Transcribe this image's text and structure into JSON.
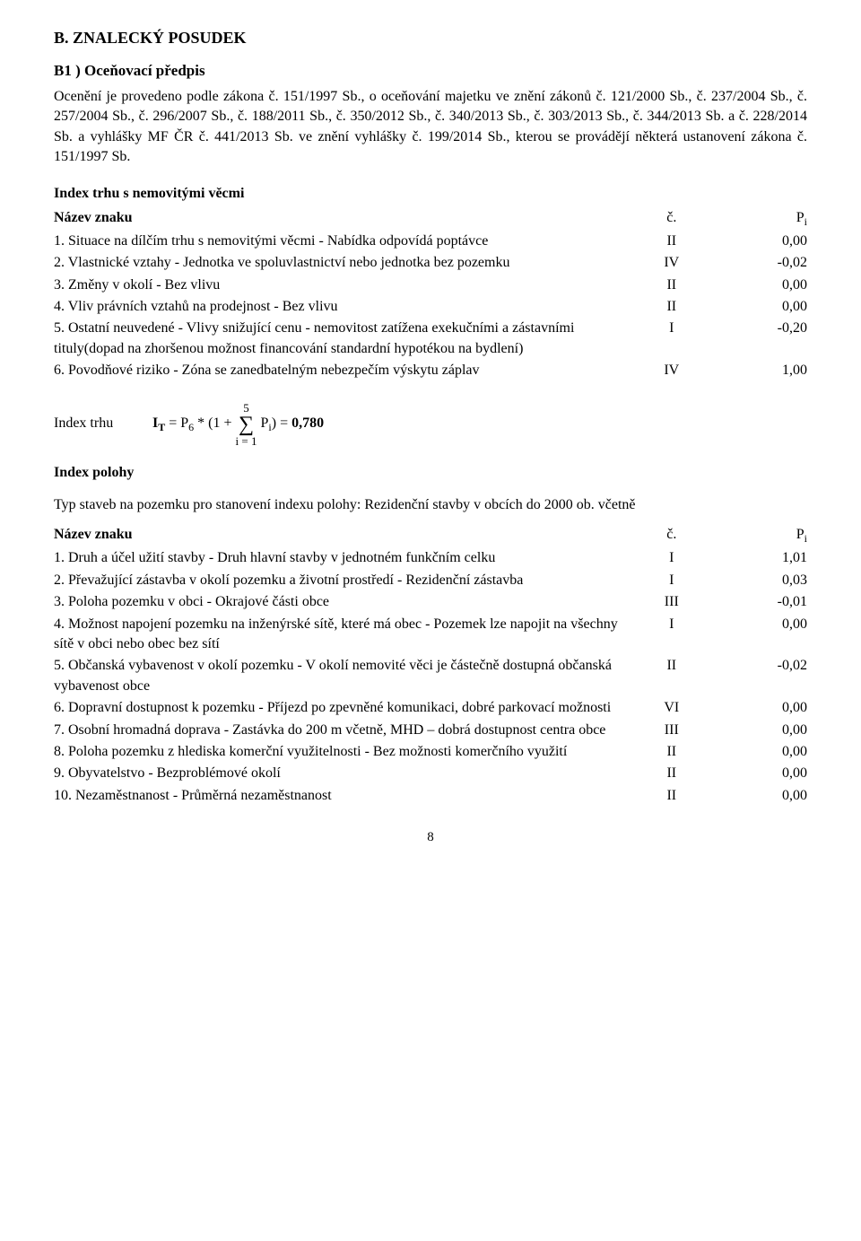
{
  "heading_main": "B. ZNALECKÝ POSUDEK",
  "heading_sub": "B1 ) Oceňovací předpis",
  "intro": "Ocenění je provedeno podle zákona č. 151/1997 Sb., o oceňování majetku ve znění zákonů č. 121/2000 Sb., č. 237/2004 Sb., č. 257/2004 Sb., č. 296/2007 Sb., č. 188/2011 Sb., č. 350/2012 Sb., č. 340/2013 Sb., č. 303/2013 Sb., č. 344/2013 Sb. a č. 228/2014 Sb. a vyhlášky MF ČR č. 441/2013 Sb. ve znění vyhlášky č. 199/2014 Sb., kterou se provádějí některá ustanovení zákona č. 151/1997 Sb.",
  "section1_title": "Index trhu s nemovitými věcmi",
  "table_header": {
    "name": "Název znaku",
    "c": "č.",
    "p": "P"
  },
  "section1_rows": [
    {
      "name": "1. Situace na dílčím trhu s nemovitými věcmi - Nabídka odpovídá poptávce",
      "c": "II",
      "p": "0,00"
    },
    {
      "name": "2. Vlastnické vztahy - Jednotka ve spoluvlastnictví nebo jednotka bez pozemku",
      "c": "IV",
      "p": "-0,02"
    },
    {
      "name": "3. Změny v okolí - Bez vlivu",
      "c": "II",
      "p": "0,00"
    },
    {
      "name": "4. Vliv právních vztahů na prodejnost - Bez vlivu",
      "c": "II",
      "p": "0,00"
    },
    {
      "name": "5. Ostatní neuvedené - Vlivy snižující cenu - nemovitost zatížena exekučními a zástavními tituly(dopad na zhoršenou možnost financování standardní hypotékou na bydlení)",
      "c": "I",
      "p": "-0,20"
    },
    {
      "name": "6. Povodňové riziko - Zóna se zanedbatelným nebezpečím výskytu záplav",
      "c": "IV",
      "p": "1,00"
    }
  ],
  "formula": {
    "label": "Index trhu",
    "prefix": "I",
    "sub1": "T",
    "eq1": " = P",
    "sub2": "6",
    "mid": " * (1 + ",
    "sum_top": "5",
    "sum_bottom": "i = 1",
    "post_sum": " P",
    "sub3": "i",
    "eq2": ") = ",
    "result": "0,780"
  },
  "section2_title": "Index polohy",
  "section2_intro": "Typ staveb na pozemku pro stanovení indexu polohy: Rezidenční stavby v obcích do 2000 ob. včetně",
  "section2_rows": [
    {
      "name": "1. Druh a účel užití stavby - Druh hlavní stavby v jednotném funkčním celku",
      "c": "I",
      "p": "1,01"
    },
    {
      "name": "2. Převažující zástavba v okolí pozemku a životní prostředí - Rezidenční zástavba",
      "c": "I",
      "p": "0,03"
    },
    {
      "name": "3. Poloha pozemku v obci - Okrajové části obce",
      "c": "III",
      "p": "-0,01"
    },
    {
      "name": "4. Možnost napojení pozemku na inženýrské sítě, které má obec - Pozemek lze napojit na všechny sítě v obci nebo obec bez sítí",
      "c": "I",
      "p": "0,00"
    },
    {
      "name": "5. Občanská vybavenost v okolí pozemku - V okolí nemovité věci je částečně dostupná občanská vybavenost obce",
      "c": "II",
      "p": "-0,02"
    },
    {
      "name": "6. Dopravní dostupnost k pozemku - Příjezd po zpevněné komunikaci, dobré parkovací možnosti",
      "c": "VI",
      "p": "0,00"
    },
    {
      "name": "7. Osobní hromadná doprava - Zastávka do 200 m včetně, MHD – dobrá dostupnost centra obce",
      "c": "III",
      "p": "0,00"
    },
    {
      "name": "8. Poloha pozemku z hlediska komerční využitelnosti - Bez možnosti komerčního využití",
      "c": "II",
      "p": "0,00"
    },
    {
      "name": "9. Obyvatelstvo - Bezproblémové okolí",
      "c": "II",
      "p": "0,00"
    },
    {
      "name": "10. Nezaměstnanost - Průměrná nezaměstnanost",
      "c": "II",
      "p": "0,00"
    }
  ],
  "page_number": "8"
}
